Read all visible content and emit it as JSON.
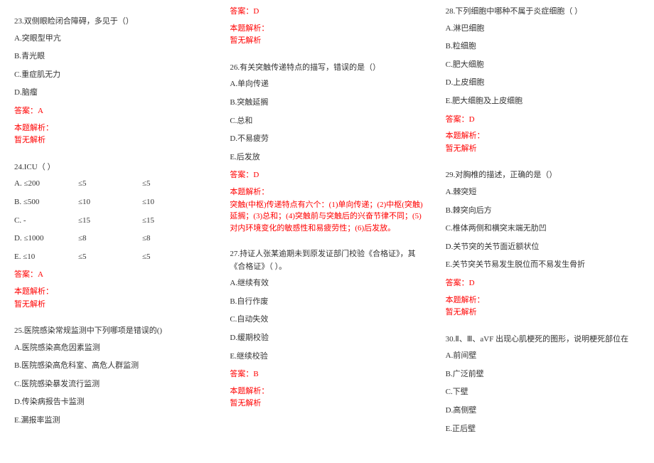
{
  "col1": {
    "q23": {
      "stem": "23.双侧眼睑闭合障碍，多见于（）",
      "opts": [
        "A.突眼型甲亢",
        "B.青光眼",
        "C.重症肌无力",
        "D.脑瘤"
      ],
      "ans": "答案：A",
      "alabel": "本题解析：",
      "anone": "暂无解析"
    },
    "q24": {
      "stem": "24.ICU（  ）",
      "rows": [
        [
          "A. ≤200",
          "≤5",
          "≤5"
        ],
        [
          "B. ≤500",
          "≤10",
          "≤10"
        ],
        [
          "C. -",
          "≤15",
          "≤15"
        ],
        [
          "D. ≤1000",
          "≤8",
          "≤8"
        ],
        [
          "E. ≤10",
          "≤5",
          "≤5"
        ]
      ],
      "ans": "答案：A",
      "alabel": "本题解析：",
      "anone": "暂无解析"
    },
    "q25": {
      "stem": "25.医院感染常规监测中下列哪项是错误的()",
      "opts": [
        "A.医院感染高危因素监测",
        "B.医院感染高危科室、高危人群监测",
        "C.医院感染暴发流行监测",
        "D.传染病报告卡监测",
        "E.漏报率监测"
      ]
    }
  },
  "col2": {
    "top": {
      "ans": "答案：D",
      "alabel": "本题解析：",
      "anone": "暂无解析"
    },
    "q26": {
      "stem": "26.有关突触传递特点的描写，错误的是（）",
      "opts": [
        "A.单向传递",
        "B.突触延搁",
        "C.总和",
        "D.不易疲劳",
        "E.后发放"
      ],
      "ans": "答案：D",
      "alabel": "本题解析：",
      "expl": "突触(中枢)传递特点有六个：(1)单向传递；(2)中枢(突触)延搁；(3)总和；(4)突触前与突触后的兴奋节律不同；(5)对内环境变化的敏感性和易疲劳性；(6)后发放。"
    },
    "q27": {
      "stem": "27.持证人张某逾期未到原发证部门校验《合格证》，其《合格证》（  ）。",
      "opts": [
        "A.继续有效",
        "B.自行作废",
        "C.自动失效",
        "D.缓期校验",
        "E.继续校验"
      ],
      "ans": "答案：B",
      "alabel": "本题解析：",
      "anone": "暂无解析"
    }
  },
  "col3": {
    "q28": {
      "stem": "28.下列细胞中哪种不属于炎症细胞（  ）",
      "opts": [
        "A.淋巴细胞",
        "B.粒细胞",
        "C.肥大细胞",
        "D.上皮细胞",
        "E.肥大细胞及上皮细胞"
      ],
      "ans": "答案：D",
      "alabel": "本题解析：",
      "anone": "暂无解析"
    },
    "q29": {
      "stem": "29.对胸椎的描述，正确的是（）",
      "opts": [
        "A.棘突短",
        "B.棘突向后方",
        "C.椎体两侧和横突末端无肋凹",
        "D.关节突的关节面近额状位",
        "E.关节突关节易发生脱位而不易发生骨折"
      ],
      "ans": "答案：D",
      "alabel": "本题解析：",
      "anone": "暂无解析"
    },
    "q30": {
      "stem": "30.Ⅱ、Ⅲ、aVF 出现心肌梗死的图形，说明梗死部位在",
      "opts": [
        "A.前间壁",
        "B.广泛前壁",
        "C.下壁",
        "D.高侧壁",
        "E.正后壁"
      ]
    }
  }
}
